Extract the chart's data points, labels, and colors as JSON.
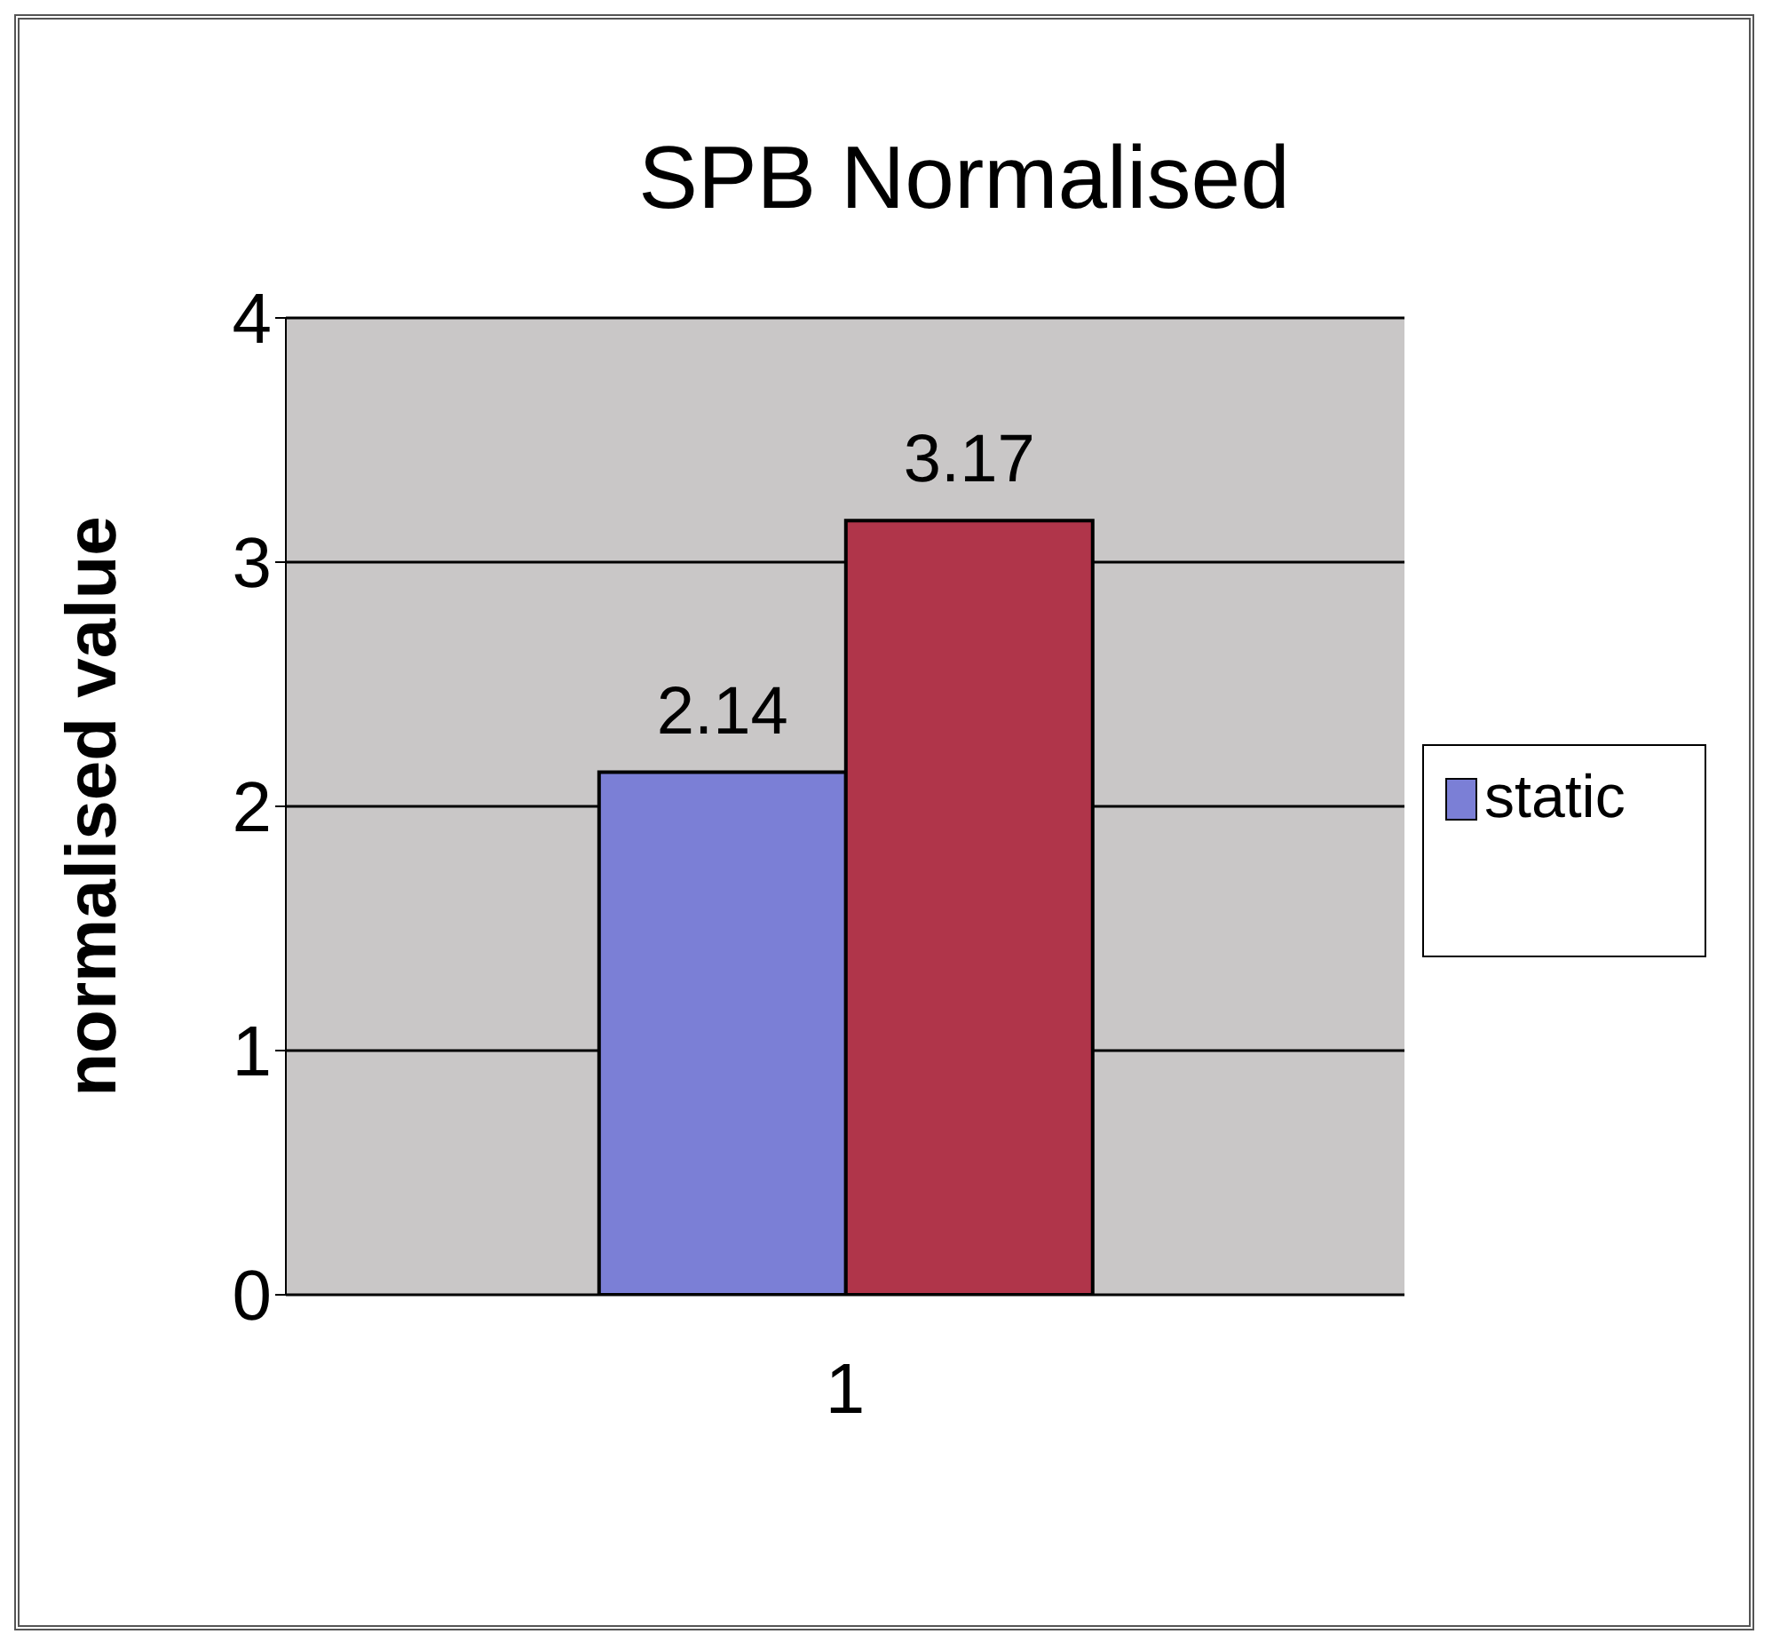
{
  "chart_data": {
    "type": "bar",
    "title": "SPB Normalised",
    "ylabel": "normalised value",
    "categories": [
      "1"
    ],
    "series": [
      {
        "name": "static",
        "color": "#7b7fd6",
        "values": [
          2.14
        ]
      },
      {
        "color": "#b0354a",
        "values": [
          3.17
        ]
      }
    ],
    "ylim": [
      0,
      4
    ],
    "yticks": [
      0,
      1,
      2,
      3,
      4
    ],
    "grid": "y",
    "legend": "right",
    "data_labels": true
  }
}
